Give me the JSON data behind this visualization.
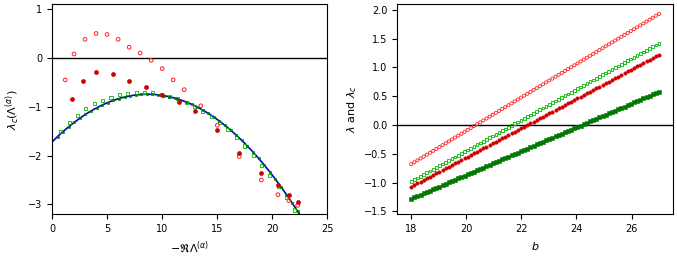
{
  "left": {
    "xlim": [
      0,
      25
    ],
    "ylim": [
      -3.2,
      1.1
    ],
    "yticks": [
      -3,
      -2,
      -1,
      0,
      1
    ],
    "xticks": [
      0,
      5,
      10,
      15,
      20,
      25
    ],
    "xlabel": "$-\\mathfrak{R}\\Lambda^{(\\alpha)}$",
    "ylabel": "$\\lambda_c(\\Lambda^{(\\alpha)})$"
  },
  "right": {
    "xlim": [
      17.5,
      27.5
    ],
    "ylim": [
      -1.55,
      2.1
    ],
    "yticks": [
      -1.5,
      -1,
      -0.5,
      0,
      0.5,
      1,
      1.5,
      2
    ],
    "xticks": [
      18,
      20,
      22,
      24,
      26
    ],
    "xlabel": "$b$",
    "ylabel": "$\\lambda$ and $\\lambda_c$"
  },
  "colors": {
    "red_open": "#FF2020",
    "red_filled": "#CC0000",
    "green_open": "#00BB00",
    "green_filled": "#007700",
    "blue_line": "#0000CC"
  },
  "blue_quad": {
    "c": -1.72,
    "a": -0.012942,
    "b": 0.22475
  }
}
